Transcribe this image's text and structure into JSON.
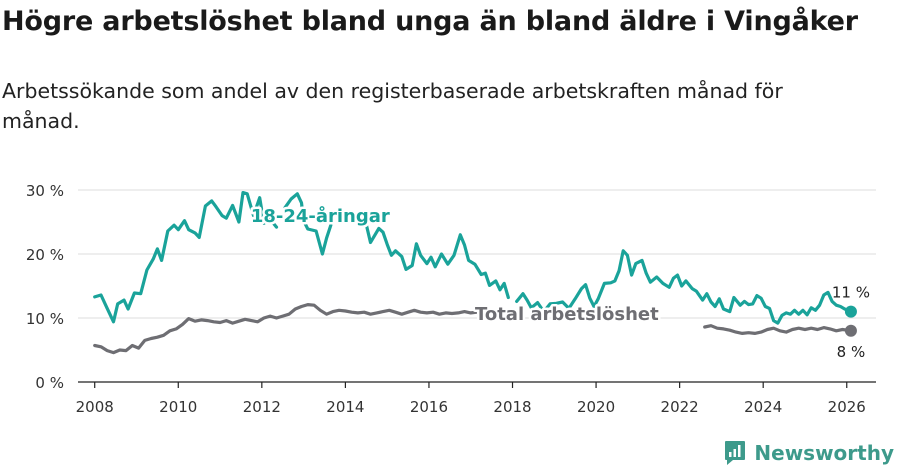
{
  "title": "Högre arbetslöshet bland unga än bland äldre i Vingåker",
  "subtitle": "Arbetssökande som andel av den registerbaserade arbetskraften månad för månad.",
  "brand": {
    "name": "Newsworthy"
  },
  "colors": {
    "youth": "#1aa39a",
    "total": "#6e6e73",
    "grid": "#dcdcdc",
    "axis": "#222222"
  },
  "chart_data": {
    "type": "line",
    "x_label": "",
    "y_label": "",
    "xlim": [
      2007.6,
      2026.7
    ],
    "ylim": [
      0,
      30
    ],
    "x_ticks": [
      2008,
      2010,
      2012,
      2014,
      2016,
      2018,
      2020,
      2022,
      2024,
      2026
    ],
    "x_tick_labels": [
      "2008",
      "2010",
      "2012",
      "2014",
      "2016",
      "2018",
      "2020",
      "2022",
      "2024",
      "2026"
    ],
    "y_ticks": [
      0,
      10,
      20,
      30
    ],
    "y_tick_labels": [
      "0 %",
      "10 %",
      "20 %",
      "30 %"
    ],
    "grid": true,
    "series": [
      {
        "name": "18-24-åringar",
        "color": "#1aa39a",
        "end_label": "11 %",
        "points": [
          [
            2008.0,
            13.3
          ],
          [
            2008.15,
            13.6
          ],
          [
            2008.3,
            11.5
          ],
          [
            2008.45,
            9.4
          ],
          [
            2008.55,
            12.2
          ],
          [
            2008.7,
            12.8
          ],
          [
            2008.8,
            11.4
          ],
          [
            2008.95,
            13.9
          ],
          [
            2009.1,
            13.8
          ],
          [
            2009.25,
            17.5
          ],
          [
            2009.4,
            19.2
          ],
          [
            2009.5,
            20.8
          ],
          [
            2009.6,
            19.0
          ],
          [
            2009.75,
            23.6
          ],
          [
            2009.9,
            24.5
          ],
          [
            2010.0,
            23.8
          ],
          [
            2010.15,
            25.2
          ],
          [
            2010.25,
            23.8
          ],
          [
            2010.4,
            23.3
          ],
          [
            2010.5,
            22.6
          ],
          [
            2010.65,
            27.5
          ],
          [
            2010.8,
            28.3
          ],
          [
            2010.9,
            27.4
          ],
          [
            2011.05,
            26.0
          ],
          [
            2011.15,
            25.6
          ],
          [
            2011.3,
            27.6
          ],
          [
            2011.45,
            25.0
          ],
          [
            2011.55,
            29.6
          ],
          [
            2011.65,
            29.4
          ],
          [
            2011.8,
            26.0
          ],
          [
            2011.95,
            28.8
          ],
          [
            2012.05,
            24.8
          ],
          [
            2012.2,
            25.4
          ],
          [
            2012.35,
            24.2
          ],
          null,
          [
            2012.55,
            27.2
          ],
          [
            2012.7,
            28.6
          ],
          [
            2012.85,
            29.4
          ],
          [
            2012.95,
            28.0
          ],
          [
            2013.0,
            25.2
          ],
          [
            2013.1,
            23.9
          ],
          [
            2013.3,
            23.6
          ],
          [
            2013.45,
            20.0
          ],
          [
            2013.55,
            22.5
          ],
          [
            2013.65,
            24.5
          ],
          null,
          [
            2014.35,
            24.6
          ],
          [
            2014.5,
            24.6
          ],
          [
            2014.6,
            21.8
          ],
          [
            2014.8,
            24.0
          ],
          [
            2014.9,
            23.4
          ],
          [
            2015.0,
            21.5
          ],
          [
            2015.1,
            19.8
          ],
          [
            2015.2,
            20.5
          ],
          [
            2015.35,
            19.6
          ],
          [
            2015.45,
            17.6
          ],
          [
            2015.6,
            18.2
          ],
          [
            2015.7,
            21.6
          ],
          [
            2015.8,
            19.8
          ],
          [
            2015.95,
            18.5
          ],
          [
            2016.05,
            19.5
          ],
          [
            2016.15,
            18.0
          ],
          [
            2016.3,
            20.0
          ],
          [
            2016.45,
            18.4
          ],
          [
            2016.6,
            19.8
          ],
          [
            2016.75,
            23.0
          ],
          [
            2016.85,
            21.4
          ],
          [
            2016.95,
            19.0
          ],
          [
            2017.1,
            18.4
          ],
          [
            2017.25,
            16.8
          ],
          [
            2017.35,
            17.0
          ],
          [
            2017.45,
            15.1
          ],
          [
            2017.6,
            15.8
          ],
          [
            2017.7,
            14.4
          ],
          [
            2017.8,
            15.4
          ],
          [
            2017.9,
            13.2
          ],
          null,
          [
            2018.1,
            12.6
          ],
          [
            2018.25,
            13.8
          ],
          [
            2018.35,
            12.8
          ],
          [
            2018.45,
            11.6
          ],
          [
            2018.6,
            12.4
          ],
          [
            2018.75,
            11.0
          ],
          [
            2018.9,
            12.2
          ],
          [
            2019.05,
            12.3
          ],
          [
            2019.2,
            12.5
          ],
          [
            2019.35,
            11.5
          ],
          [
            2019.5,
            13.0
          ],
          [
            2019.65,
            14.6
          ],
          [
            2019.75,
            15.2
          ],
          [
            2019.85,
            13.1
          ],
          [
            2019.95,
            11.8
          ],
          [
            2020.05,
            13.0
          ],
          [
            2020.2,
            15.4
          ],
          [
            2020.35,
            15.5
          ],
          [
            2020.45,
            15.8
          ],
          [
            2020.55,
            17.4
          ],
          [
            2020.65,
            20.5
          ],
          [
            2020.75,
            19.8
          ],
          [
            2020.85,
            16.7
          ],
          [
            2020.95,
            18.5
          ],
          [
            2021.1,
            19.0
          ],
          [
            2021.2,
            17.0
          ],
          [
            2021.3,
            15.6
          ],
          [
            2021.45,
            16.4
          ],
          [
            2021.6,
            15.4
          ],
          [
            2021.75,
            14.8
          ],
          [
            2021.85,
            16.2
          ],
          [
            2021.95,
            16.7
          ],
          [
            2022.05,
            15.0
          ],
          [
            2022.15,
            15.8
          ],
          [
            2022.3,
            14.6
          ],
          [
            2022.4,
            14.2
          ],
          [
            2022.55,
            12.8
          ],
          [
            2022.65,
            13.8
          ],
          [
            2022.75,
            12.5
          ],
          [
            2022.85,
            11.8
          ],
          [
            2022.95,
            13.0
          ],
          [
            2023.05,
            11.4
          ],
          [
            2023.2,
            11.0
          ],
          [
            2023.3,
            13.2
          ],
          [
            2023.45,
            12.0
          ],
          [
            2023.55,
            12.6
          ],
          [
            2023.65,
            12.1
          ],
          [
            2023.75,
            12.2
          ],
          [
            2023.85,
            13.5
          ],
          [
            2023.95,
            13.1
          ],
          [
            2024.05,
            11.8
          ],
          [
            2024.15,
            11.5
          ],
          [
            2024.25,
            9.6
          ],
          [
            2024.35,
            9.2
          ],
          [
            2024.45,
            10.4
          ],
          [
            2024.55,
            10.8
          ],
          [
            2024.65,
            10.6
          ],
          [
            2024.75,
            11.2
          ],
          [
            2024.85,
            10.6
          ],
          [
            2024.95,
            11.2
          ],
          [
            2025.05,
            10.5
          ],
          [
            2025.15,
            11.6
          ],
          [
            2025.25,
            11.2
          ],
          [
            2025.35,
            12.0
          ],
          [
            2025.45,
            13.6
          ],
          [
            2025.55,
            14.0
          ],
          [
            2025.65,
            12.6
          ],
          [
            2025.75,
            12.0
          ],
          [
            2025.85,
            11.8
          ],
          [
            2025.95,
            11.4
          ],
          [
            2026.1,
            11.0
          ]
        ]
      },
      {
        "name": "Total arbetslöshet",
        "color": "#6e6e73",
        "end_label": "8 %",
        "points": [
          [
            2008.0,
            5.7
          ],
          [
            2008.15,
            5.5
          ],
          [
            2008.3,
            4.9
          ],
          [
            2008.45,
            4.6
          ],
          [
            2008.6,
            5.0
          ],
          [
            2008.75,
            4.9
          ],
          [
            2008.9,
            5.7
          ],
          [
            2009.05,
            5.3
          ],
          [
            2009.2,
            6.5
          ],
          [
            2009.35,
            6.8
          ],
          [
            2009.5,
            7.0
          ],
          [
            2009.65,
            7.3
          ],
          [
            2009.8,
            8.0
          ],
          [
            2009.95,
            8.3
          ],
          [
            2010.1,
            9.0
          ],
          [
            2010.25,
            9.9
          ],
          [
            2010.4,
            9.5
          ],
          [
            2010.55,
            9.7
          ],
          [
            2010.7,
            9.6
          ],
          [
            2010.85,
            9.4
          ],
          [
            2011.0,
            9.3
          ],
          [
            2011.15,
            9.6
          ],
          [
            2011.3,
            9.2
          ],
          [
            2011.45,
            9.5
          ],
          [
            2011.6,
            9.8
          ],
          [
            2011.75,
            9.6
          ],
          [
            2011.9,
            9.4
          ],
          [
            2012.05,
            10.0
          ],
          [
            2012.2,
            10.3
          ],
          [
            2012.35,
            10.0
          ],
          [
            2012.5,
            10.3
          ],
          [
            2012.65,
            10.6
          ],
          [
            2012.8,
            11.4
          ],
          [
            2012.95,
            11.8
          ],
          [
            2013.1,
            12.1
          ],
          [
            2013.25,
            12.0
          ],
          [
            2013.4,
            11.2
          ],
          [
            2013.55,
            10.6
          ],
          [
            2013.7,
            11.0
          ],
          [
            2013.85,
            11.2
          ],
          [
            2014.0,
            11.1
          ],
          [
            2014.15,
            10.9
          ],
          [
            2014.3,
            10.8
          ],
          [
            2014.45,
            10.9
          ],
          [
            2014.6,
            10.6
          ],
          [
            2014.75,
            10.8
          ],
          [
            2014.9,
            11.0
          ],
          [
            2015.05,
            11.2
          ],
          [
            2015.2,
            10.9
          ],
          [
            2015.35,
            10.6
          ],
          [
            2015.5,
            10.9
          ],
          [
            2015.65,
            11.2
          ],
          [
            2015.8,
            10.9
          ],
          [
            2015.95,
            10.8
          ],
          [
            2016.1,
            10.9
          ],
          [
            2016.25,
            10.6
          ],
          [
            2016.4,
            10.8
          ],
          [
            2016.55,
            10.7
          ],
          [
            2016.7,
            10.8
          ],
          [
            2016.85,
            11.0
          ],
          [
            2017.0,
            10.8
          ],
          [
            2017.15,
            10.9
          ],
          [
            2017.3,
            10.7
          ],
          [
            2017.45,
            10.4
          ],
          [
            2017.6,
            10.5
          ],
          null,
          [
            2022.6,
            8.6
          ],
          [
            2022.75,
            8.8
          ],
          [
            2022.9,
            8.4
          ],
          [
            2023.05,
            8.3
          ],
          [
            2023.2,
            8.1
          ],
          [
            2023.35,
            7.8
          ],
          [
            2023.5,
            7.6
          ],
          [
            2023.65,
            7.7
          ],
          [
            2023.8,
            7.6
          ],
          [
            2023.95,
            7.8
          ],
          [
            2024.1,
            8.2
          ],
          [
            2024.25,
            8.4
          ],
          [
            2024.4,
            8.0
          ],
          [
            2024.55,
            7.8
          ],
          [
            2024.7,
            8.2
          ],
          [
            2024.85,
            8.4
          ],
          [
            2025.0,
            8.2
          ],
          [
            2025.15,
            8.4
          ],
          [
            2025.3,
            8.2
          ],
          [
            2025.45,
            8.5
          ],
          [
            2025.6,
            8.3
          ],
          [
            2025.75,
            8.0
          ],
          [
            2025.9,
            8.2
          ],
          [
            2026.1,
            8.0
          ]
        ]
      }
    ],
    "annotations": [
      {
        "text": "18-24-åringar",
        "series": "18-24-åringar",
        "at_x": 2013.4,
        "at_y": 25.0
      },
      {
        "text": "Total arbetslöshet",
        "series": "Total arbetslöshet",
        "at_x": 2019.3,
        "at_y": 9.7
      }
    ]
  }
}
